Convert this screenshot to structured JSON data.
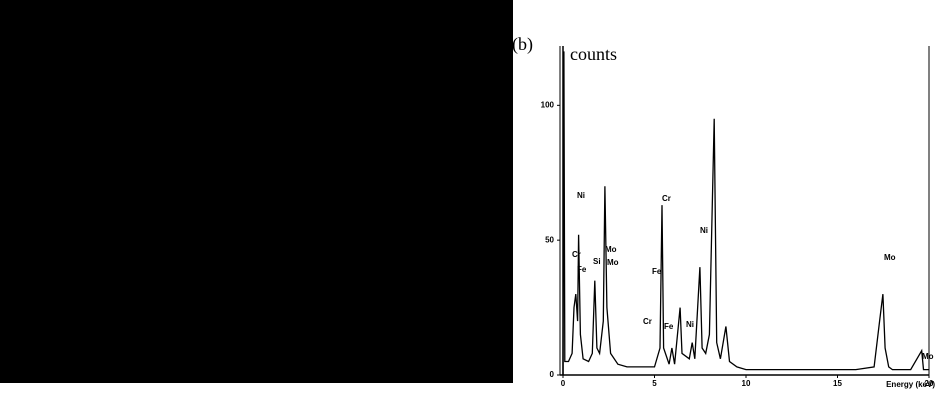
{
  "chart_data": {
    "type": "line",
    "title": "(b)",
    "ylabel": "counts",
    "xlabel": "Energy (keV)",
    "x": [
      0,
      0.05,
      0.1,
      0.3,
      0.5,
      0.6,
      0.7,
      0.8,
      0.85,
      0.95,
      1.1,
      1.4,
      1.6,
      1.74,
      1.85,
      2.0,
      2.2,
      2.29,
      2.4,
      2.6,
      3.0,
      3.5,
      4.0,
      4.5,
      5.0,
      5.3,
      5.41,
      5.5,
      5.8,
      5.95,
      6.1,
      6.4,
      6.5,
      6.9,
      7.06,
      7.2,
      7.48,
      7.6,
      7.8,
      8.0,
      8.26,
      8.4,
      8.6,
      8.9,
      9.1,
      9.5,
      10,
      11,
      12,
      13,
      14,
      15,
      16,
      17,
      17.3,
      17.48,
      17.6,
      17.8,
      18,
      19,
      19.6,
      19.7,
      20
    ],
    "series": [
      {
        "color": "#000000",
        "values": [
          0,
          120,
          5,
          5,
          8,
          25,
          30,
          20,
          52,
          15,
          6,
          5,
          8,
          35,
          10,
          8,
          20,
          70,
          25,
          8,
          4,
          3,
          3,
          3,
          3,
          10,
          63,
          10,
          4,
          10,
          4,
          25,
          8,
          6,
          12,
          6,
          40,
          10,
          8,
          15,
          95,
          12,
          6,
          18,
          5,
          3,
          2,
          2,
          2,
          2,
          2,
          2,
          2,
          3,
          20,
          30,
          10,
          3,
          2,
          2,
          9,
          2,
          2
        ]
      }
    ],
    "annotations": [
      "Ni",
      "Cr",
      "Fe",
      "Si",
      "Mo",
      "Mo",
      "Cr",
      "Fe",
      "Ni",
      "Cr",
      "Fe",
      "Ni",
      "Mo",
      "Mo"
    ],
    "xlim": [
      0,
      20
    ],
    "xticks": [
      0,
      5,
      10,
      15,
      20
    ],
    "ylim": [
      0,
      122
    ],
    "yticks": [
      0,
      50,
      100
    ]
  }
}
